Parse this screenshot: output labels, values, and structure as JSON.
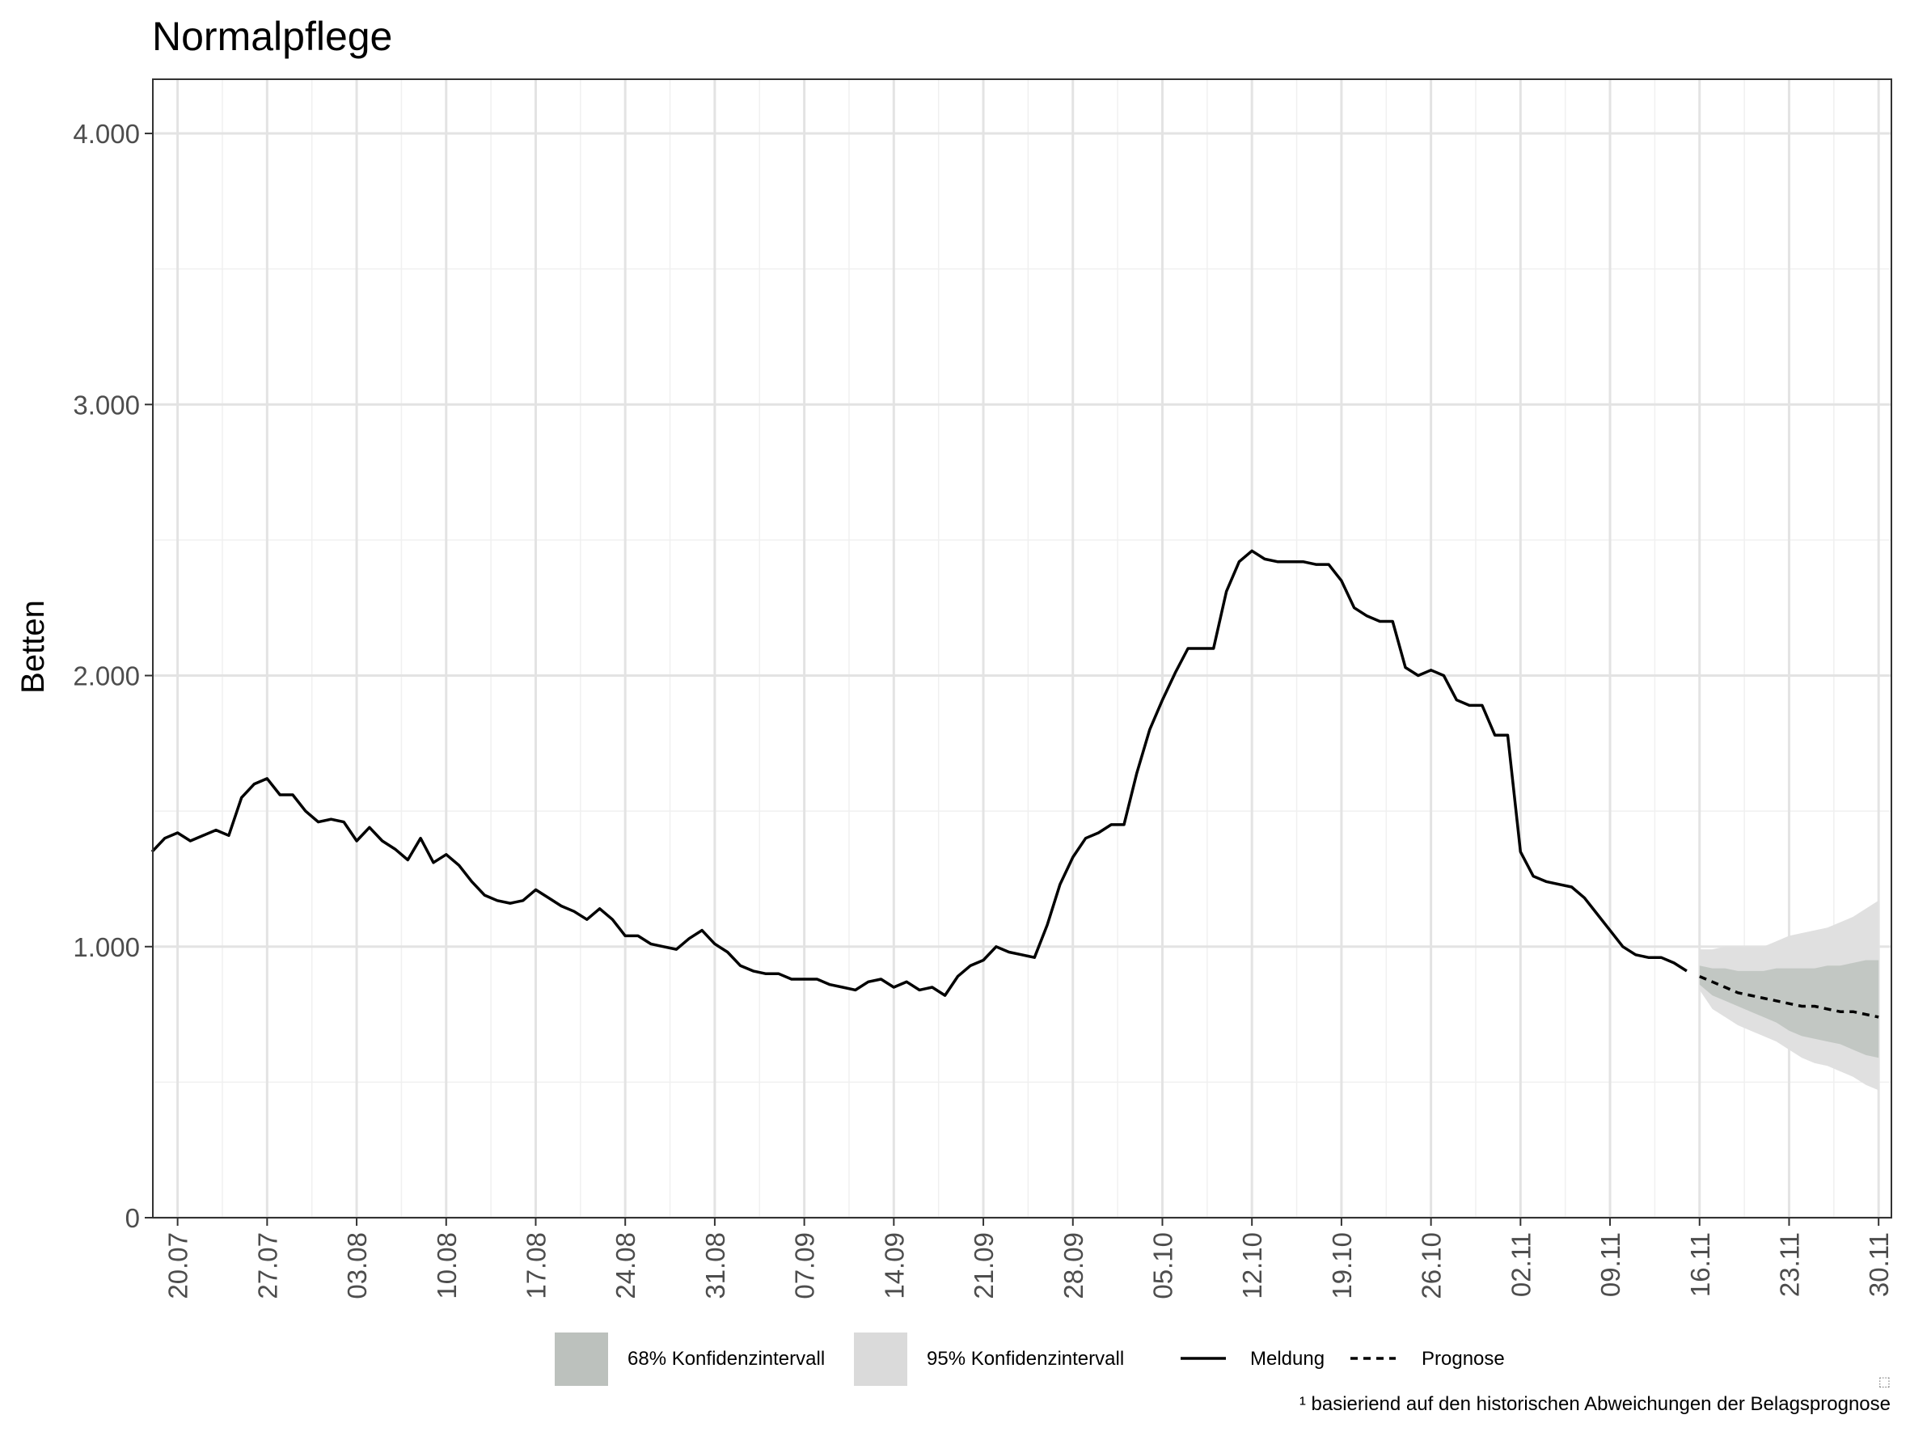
{
  "chart_data": {
    "type": "line",
    "title": "Normalpflege",
    "xlabel": "",
    "ylabel": "Betten",
    "ylim": [
      0,
      4200
    ],
    "yticks": [
      0,
      1000,
      2000,
      3000,
      4000
    ],
    "ytick_labels": [
      "0",
      "1.000",
      "2.000",
      "3.000",
      "4.000"
    ],
    "x_start_label": "18.07",
    "x_range": [
      "18.07",
      "01.12"
    ],
    "xticks": [
      "20.07",
      "27.07",
      "03.08",
      "10.08",
      "17.08",
      "24.08",
      "31.08",
      "07.09",
      "14.09",
      "21.09",
      "28.09",
      "05.10",
      "12.10",
      "19.10",
      "26.10",
      "02.11",
      "09.11",
      "16.11",
      "23.11",
      "30.11"
    ],
    "grid": true,
    "legend_position": "bottom",
    "series": [
      {
        "name": "Meldung",
        "style": "solid",
        "color": "#000000",
        "x": [
          "18.07",
          "19.07",
          "20.07",
          "21.07",
          "22.07",
          "23.07",
          "24.07",
          "25.07",
          "26.07",
          "27.07",
          "28.07",
          "29.07",
          "30.07",
          "31.07",
          "01.08",
          "02.08",
          "03.08",
          "04.08",
          "05.08",
          "06.08",
          "07.08",
          "08.08",
          "09.08",
          "10.08",
          "11.08",
          "12.08",
          "13.08",
          "14.08",
          "15.08",
          "16.08",
          "17.08",
          "18.08",
          "19.08",
          "20.08",
          "21.08",
          "22.08",
          "23.08",
          "24.08",
          "25.08",
          "26.08",
          "27.08",
          "28.08",
          "29.08",
          "30.08",
          "31.08",
          "01.09",
          "02.09",
          "03.09",
          "04.09",
          "05.09",
          "06.09",
          "07.09",
          "08.09",
          "09.09",
          "10.09",
          "11.09",
          "12.09",
          "13.09",
          "14.09",
          "15.09",
          "16.09",
          "17.09",
          "18.09",
          "19.09",
          "20.09",
          "21.09",
          "22.09",
          "23.09",
          "24.09",
          "25.09",
          "26.09",
          "27.09",
          "28.09",
          "29.09",
          "30.09",
          "01.10",
          "02.10",
          "03.10",
          "04.10",
          "05.10",
          "06.10",
          "07.10",
          "08.10",
          "09.10",
          "10.10",
          "11.10",
          "12.10",
          "13.10",
          "14.10",
          "15.10",
          "16.10",
          "17.10",
          "18.10",
          "19.10",
          "20.10",
          "21.10",
          "22.10",
          "23.10",
          "24.10",
          "25.10",
          "26.10",
          "27.10",
          "28.10",
          "29.10",
          "30.10",
          "31.10",
          "01.11",
          "02.11",
          "03.11",
          "04.11",
          "05.11",
          "06.11",
          "07.11",
          "08.11",
          "09.11",
          "10.11",
          "11.11",
          "12.11",
          "13.11",
          "14.11",
          "15.11"
        ],
        "values": [
          1350,
          1400,
          1420,
          1390,
          1410,
          1430,
          1410,
          1550,
          1600,
          1620,
          1560,
          1560,
          1500,
          1460,
          1470,
          1460,
          1390,
          1440,
          1390,
          1360,
          1320,
          1400,
          1310,
          1340,
          1300,
          1240,
          1190,
          1170,
          1160,
          1170,
          1210,
          1180,
          1150,
          1130,
          1100,
          1140,
          1100,
          1040,
          1040,
          1010,
          1000,
          990,
          1030,
          1060,
          1010,
          980,
          930,
          910,
          900,
          900,
          880,
          880,
          880,
          860,
          850,
          840,
          870,
          880,
          850,
          870,
          840,
          850,
          820,
          890,
          930,
          950,
          1000,
          980,
          970,
          960,
          1080,
          1230,
          1330,
          1400,
          1420,
          1450,
          1450,
          1640,
          1800,
          1910,
          2010,
          2100,
          2100,
          2100,
          2310,
          2420,
          2460,
          2430,
          2420,
          2420,
          2420,
          2410,
          2410,
          2350,
          2250,
          2220,
          2200,
          2200,
          2030,
          2000,
          2020,
          2000,
          1910,
          1890,
          1890,
          1780,
          1780,
          1350,
          1260,
          1240,
          1230,
          1220,
          1180,
          1120,
          1060,
          1000,
          970,
          960,
          960,
          940,
          910
        ]
      },
      {
        "name": "Prognose",
        "style": "dashed",
        "color": "#000000",
        "x": [
          "16.11",
          "17.11",
          "18.11",
          "19.11",
          "20.11",
          "21.11",
          "22.11",
          "23.11",
          "24.11",
          "25.11",
          "26.11",
          "27.11",
          "28.11",
          "29.11",
          "30.11"
        ],
        "values": [
          890,
          870,
          850,
          830,
          820,
          810,
          800,
          790,
          780,
          780,
          770,
          760,
          760,
          750,
          740
        ]
      }
    ],
    "bands": [
      {
        "name": "95% Konfidenzintervall",
        "color": "#e0e0e0",
        "x": [
          "16.11",
          "17.11",
          "18.11",
          "19.11",
          "20.11",
          "21.11",
          "22.11",
          "23.11",
          "24.11",
          "25.11",
          "26.11",
          "27.11",
          "28.11",
          "29.11",
          "30.11"
        ],
        "lower": [
          840,
          770,
          740,
          710,
          690,
          670,
          650,
          620,
          590,
          570,
          560,
          540,
          520,
          490,
          470
        ],
        "upper": [
          990,
          990,
          1000,
          1000,
          1000,
          1000,
          1020,
          1040,
          1050,
          1060,
          1070,
          1090,
          1110,
          1140,
          1170
        ]
      },
      {
        "name": "68% Konfidenzintervall",
        "color": "#c2c7c3",
        "x": [
          "16.11",
          "17.11",
          "18.11",
          "19.11",
          "20.11",
          "21.11",
          "22.11",
          "23.11",
          "24.11",
          "25.11",
          "26.11",
          "27.11",
          "28.11",
          "29.11",
          "30.11"
        ],
        "lower": [
          860,
          820,
          800,
          780,
          760,
          740,
          720,
          690,
          670,
          660,
          650,
          640,
          620,
          600,
          590
        ],
        "upper": [
          930,
          920,
          920,
          910,
          910,
          910,
          920,
          920,
          920,
          920,
          930,
          930,
          940,
          950,
          950
        ]
      }
    ],
    "legend": [
      {
        "label": "68% Konfidenzintervall",
        "kind": "fill",
        "color": "#bcc1bd"
      },
      {
        "label": "95% Konfidenzintervall",
        "kind": "fill",
        "color": "#dadada"
      },
      {
        "label": "Meldung",
        "kind": "line-solid",
        "color": "#000000"
      },
      {
        "label": "Prognose",
        "kind": "line-dashed",
        "color": "#000000"
      }
    ],
    "footnote": "¹ basieriend auf den historischen Abweichungen der Belagsprognose",
    "corner_glyph": "⬚"
  }
}
